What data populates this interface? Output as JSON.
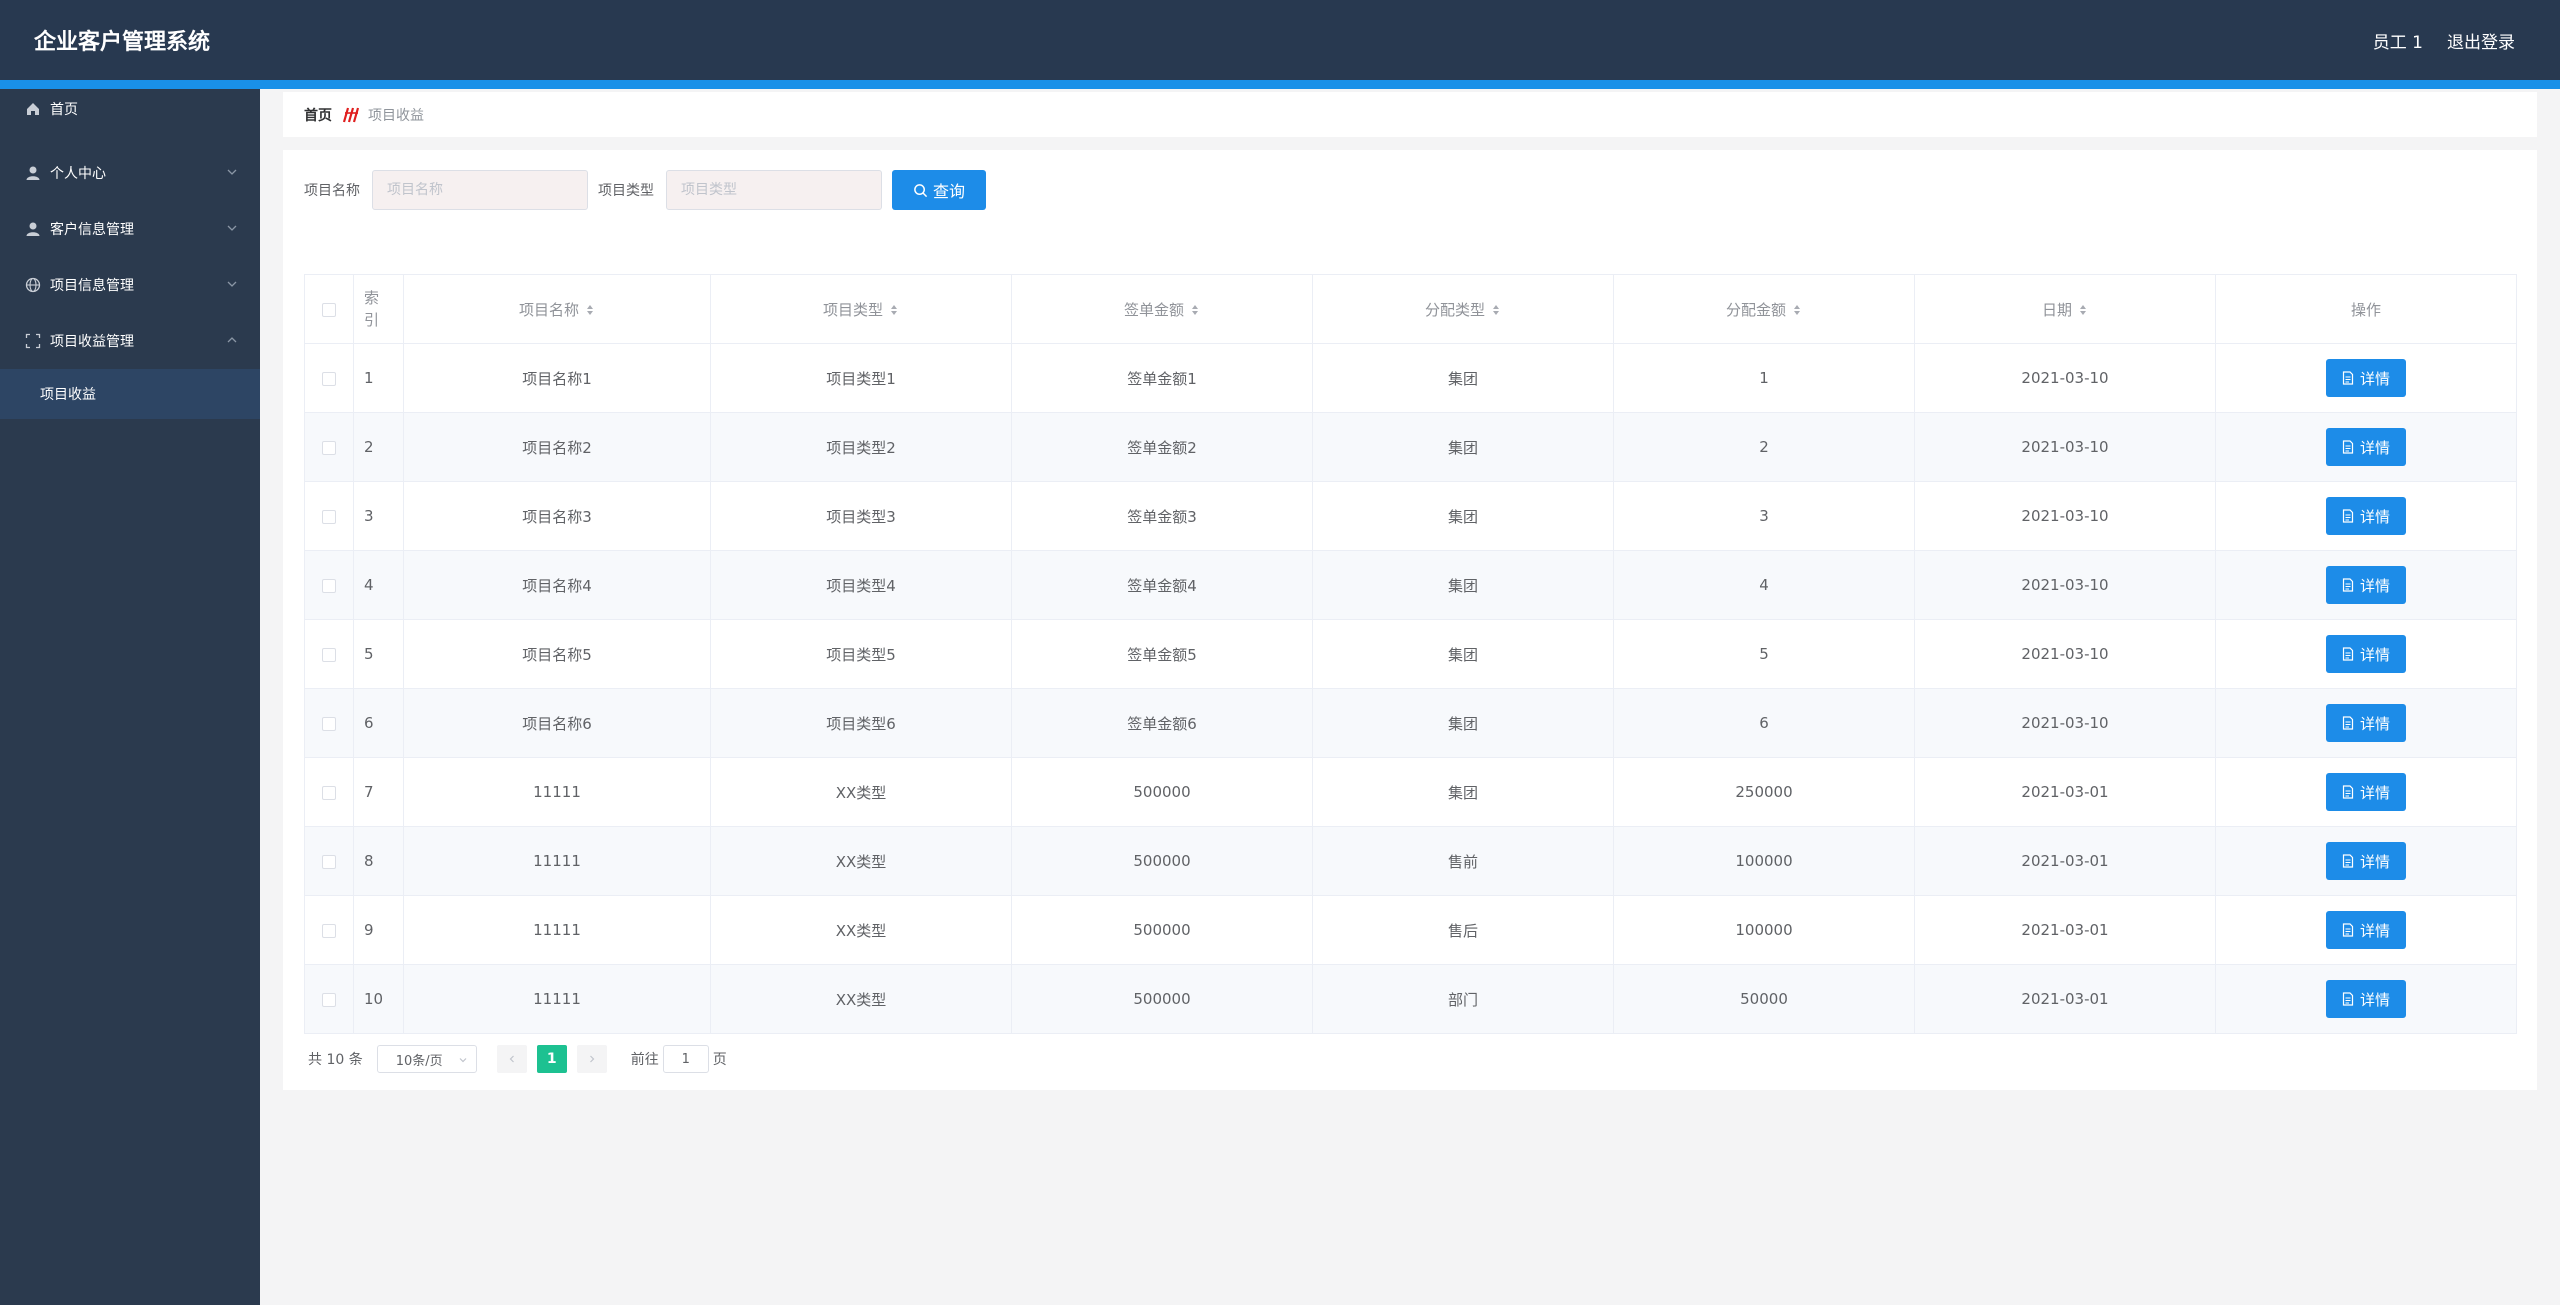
{
  "header": {
    "title": "企业客户管理系统",
    "user": "员工 1",
    "logout": "退出登录"
  },
  "sidebar": {
    "items": [
      {
        "label": "首页",
        "icon": "home-icon"
      },
      {
        "label": "个人中心",
        "icon": "user-icon"
      },
      {
        "label": "客户信息管理",
        "icon": "user-icon"
      },
      {
        "label": "项目信息管理",
        "icon": "globe-icon"
      },
      {
        "label": "项目收益管理",
        "icon": "fullscreen-icon"
      }
    ],
    "sub_item": "项目收益"
  },
  "breadcrumb": {
    "home": "首页",
    "current": "项目收益"
  },
  "search": {
    "name_label": "项目名称",
    "name_placeholder": "项目名称",
    "type_label": "项目类型",
    "type_placeholder": "项目类型",
    "button": "查询"
  },
  "table": {
    "headers": {
      "index": "索引",
      "name": "项目名称",
      "type": "项目类型",
      "amount": "签单金额",
      "dist_type": "分配类型",
      "dist_amount": "分配金额",
      "date": "日期",
      "action": "操作"
    },
    "detail_label": "详情",
    "rows": [
      {
        "index": "1",
        "name": "项目名称1",
        "type": "项目类型1",
        "amount": "签单金额1",
        "dist_type": "集团",
        "dist_amount": "1",
        "date": "2021-03-10"
      },
      {
        "index": "2",
        "name": "项目名称2",
        "type": "项目类型2",
        "amount": "签单金额2",
        "dist_type": "集团",
        "dist_amount": "2",
        "date": "2021-03-10"
      },
      {
        "index": "3",
        "name": "项目名称3",
        "type": "项目类型3",
        "amount": "签单金额3",
        "dist_type": "集团",
        "dist_amount": "3",
        "date": "2021-03-10"
      },
      {
        "index": "4",
        "name": "项目名称4",
        "type": "项目类型4",
        "amount": "签单金额4",
        "dist_type": "集团",
        "dist_amount": "4",
        "date": "2021-03-10"
      },
      {
        "index": "5",
        "name": "项目名称5",
        "type": "项目类型5",
        "amount": "签单金额5",
        "dist_type": "集团",
        "dist_amount": "5",
        "date": "2021-03-10"
      },
      {
        "index": "6",
        "name": "项目名称6",
        "type": "项目类型6",
        "amount": "签单金额6",
        "dist_type": "集团",
        "dist_amount": "6",
        "date": "2021-03-10"
      },
      {
        "index": "7",
        "name": "11111",
        "type": "XX类型",
        "amount": "500000",
        "dist_type": "集团",
        "dist_amount": "250000",
        "date": "2021-03-01"
      },
      {
        "index": "8",
        "name": "11111",
        "type": "XX类型",
        "amount": "500000",
        "dist_type": "售前",
        "dist_amount": "100000",
        "date": "2021-03-01"
      },
      {
        "index": "9",
        "name": "11111",
        "type": "XX类型",
        "amount": "500000",
        "dist_type": "售后",
        "dist_amount": "100000",
        "date": "2021-03-01"
      },
      {
        "index": "10",
        "name": "11111",
        "type": "XX类型",
        "amount": "500000",
        "dist_type": "部门",
        "dist_amount": "50000",
        "date": "2021-03-01"
      }
    ]
  },
  "pagination": {
    "total": "共 10 条",
    "page_size": "10条/页",
    "current_page": "1",
    "jump_prefix": "前往",
    "jump_value": "1",
    "jump_suffix": "页"
  },
  "colors": {
    "header_bg": "#283950",
    "accent_stripe": "#1990e8",
    "sidebar_bg": "#2b3a4e",
    "primary_button": "#1d8ce8",
    "active_page": "#1dc191"
  }
}
